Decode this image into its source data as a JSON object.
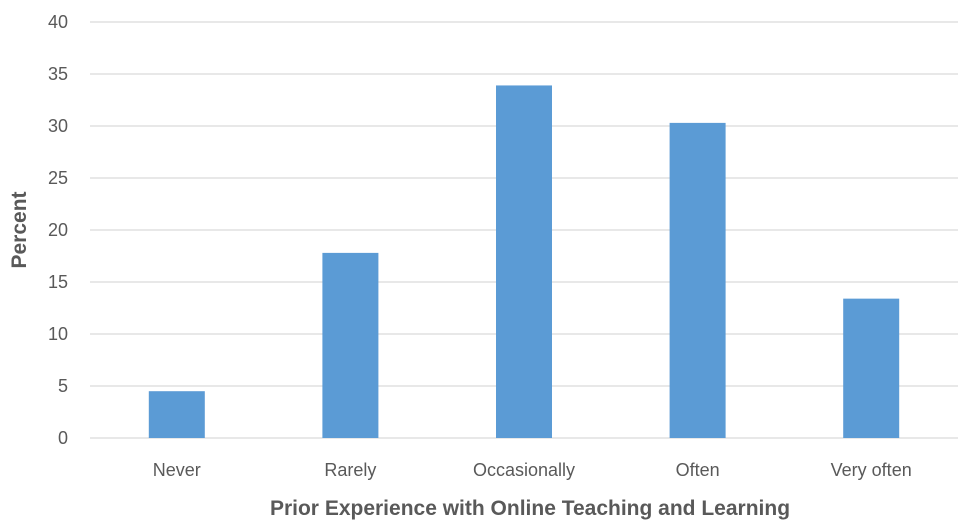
{
  "chart_data": {
    "type": "bar",
    "title": "",
    "xlabel": "Prior Experience with Online Teaching and Learning",
    "ylabel": "Percent",
    "categories": [
      "Never",
      "Rarely",
      "Occasionally",
      "Often",
      "Very often"
    ],
    "values": [
      4.5,
      17.8,
      33.9,
      30.3,
      13.4
    ],
    "ylim": [
      0,
      40
    ],
    "yticks": [
      "0",
      "5",
      "10",
      "15",
      "20",
      "25",
      "30",
      "35",
      "40"
    ],
    "grid": true,
    "legend": "none",
    "bar_color": "#5b9bd5",
    "grid_color": "#d9d9d9",
    "text_color": "#595959"
  }
}
